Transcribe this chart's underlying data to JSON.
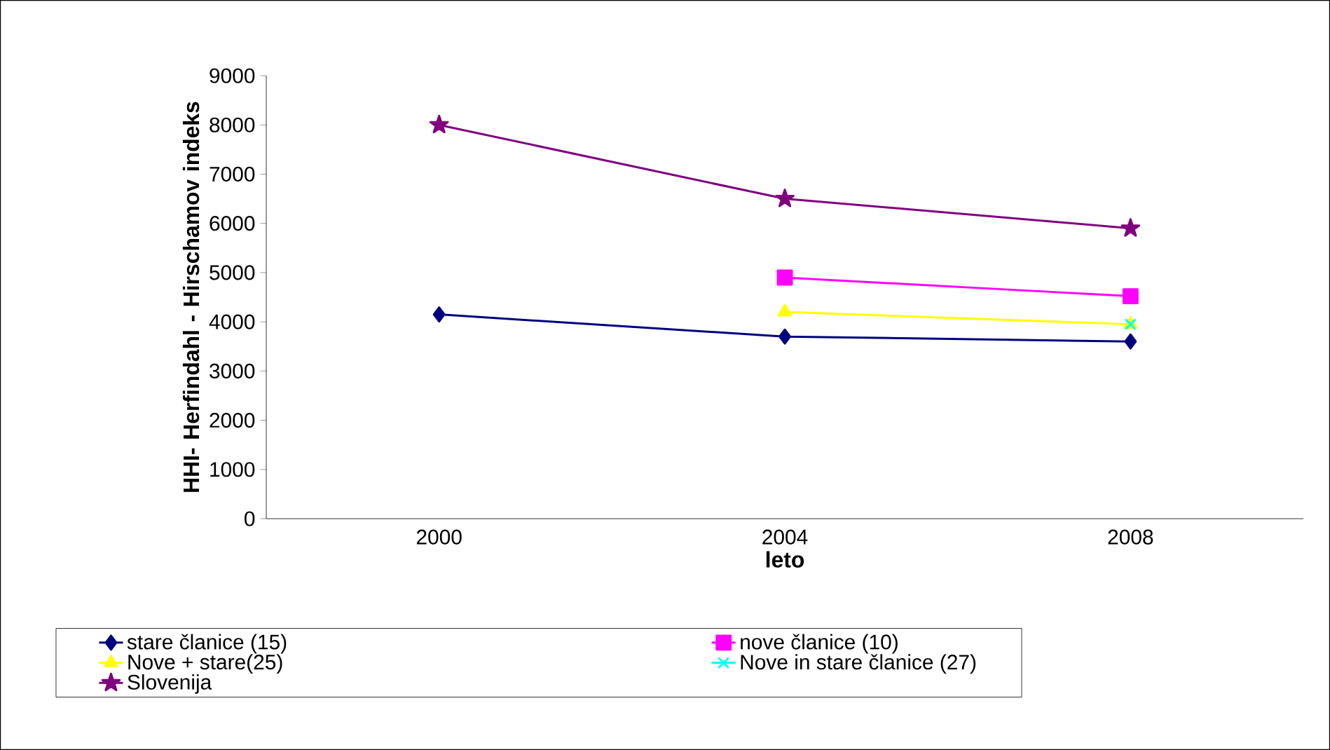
{
  "chart_data": {
    "type": "line",
    "xlabel": "leto",
    "ylabel": "HHI- Herfindahl - Hirschamov indeks",
    "categories": [
      "2000",
      "2004",
      "2008"
    ],
    "ylim": [
      0,
      9000
    ],
    "yticks": [
      0,
      1000,
      2000,
      3000,
      4000,
      5000,
      6000,
      7000,
      8000,
      9000
    ],
    "legend": "bottom",
    "line_style": "solid",
    "series": [
      {
        "name": "stare članice (15)",
        "color": "#000080",
        "marker": "diamond",
        "values": [
          4150,
          3700,
          3600
        ]
      },
      {
        "name": "nove članice (10)",
        "color": "#ff00ff",
        "marker": "square",
        "values": [
          null,
          4900,
          4520
        ]
      },
      {
        "name": "Nove + stare(25)",
        "color": "#ffff00",
        "marker": "triangle",
        "values": [
          null,
          4200,
          3950
        ]
      },
      {
        "name": "Nove in stare članice (27)",
        "color": "#00ffff",
        "marker": "cross",
        "values": [
          null,
          null,
          3950
        ]
      },
      {
        "name": "Slovenija",
        "color": "#800080",
        "marker": "star",
        "values": [
          8000,
          6500,
          5900
        ]
      }
    ]
  }
}
